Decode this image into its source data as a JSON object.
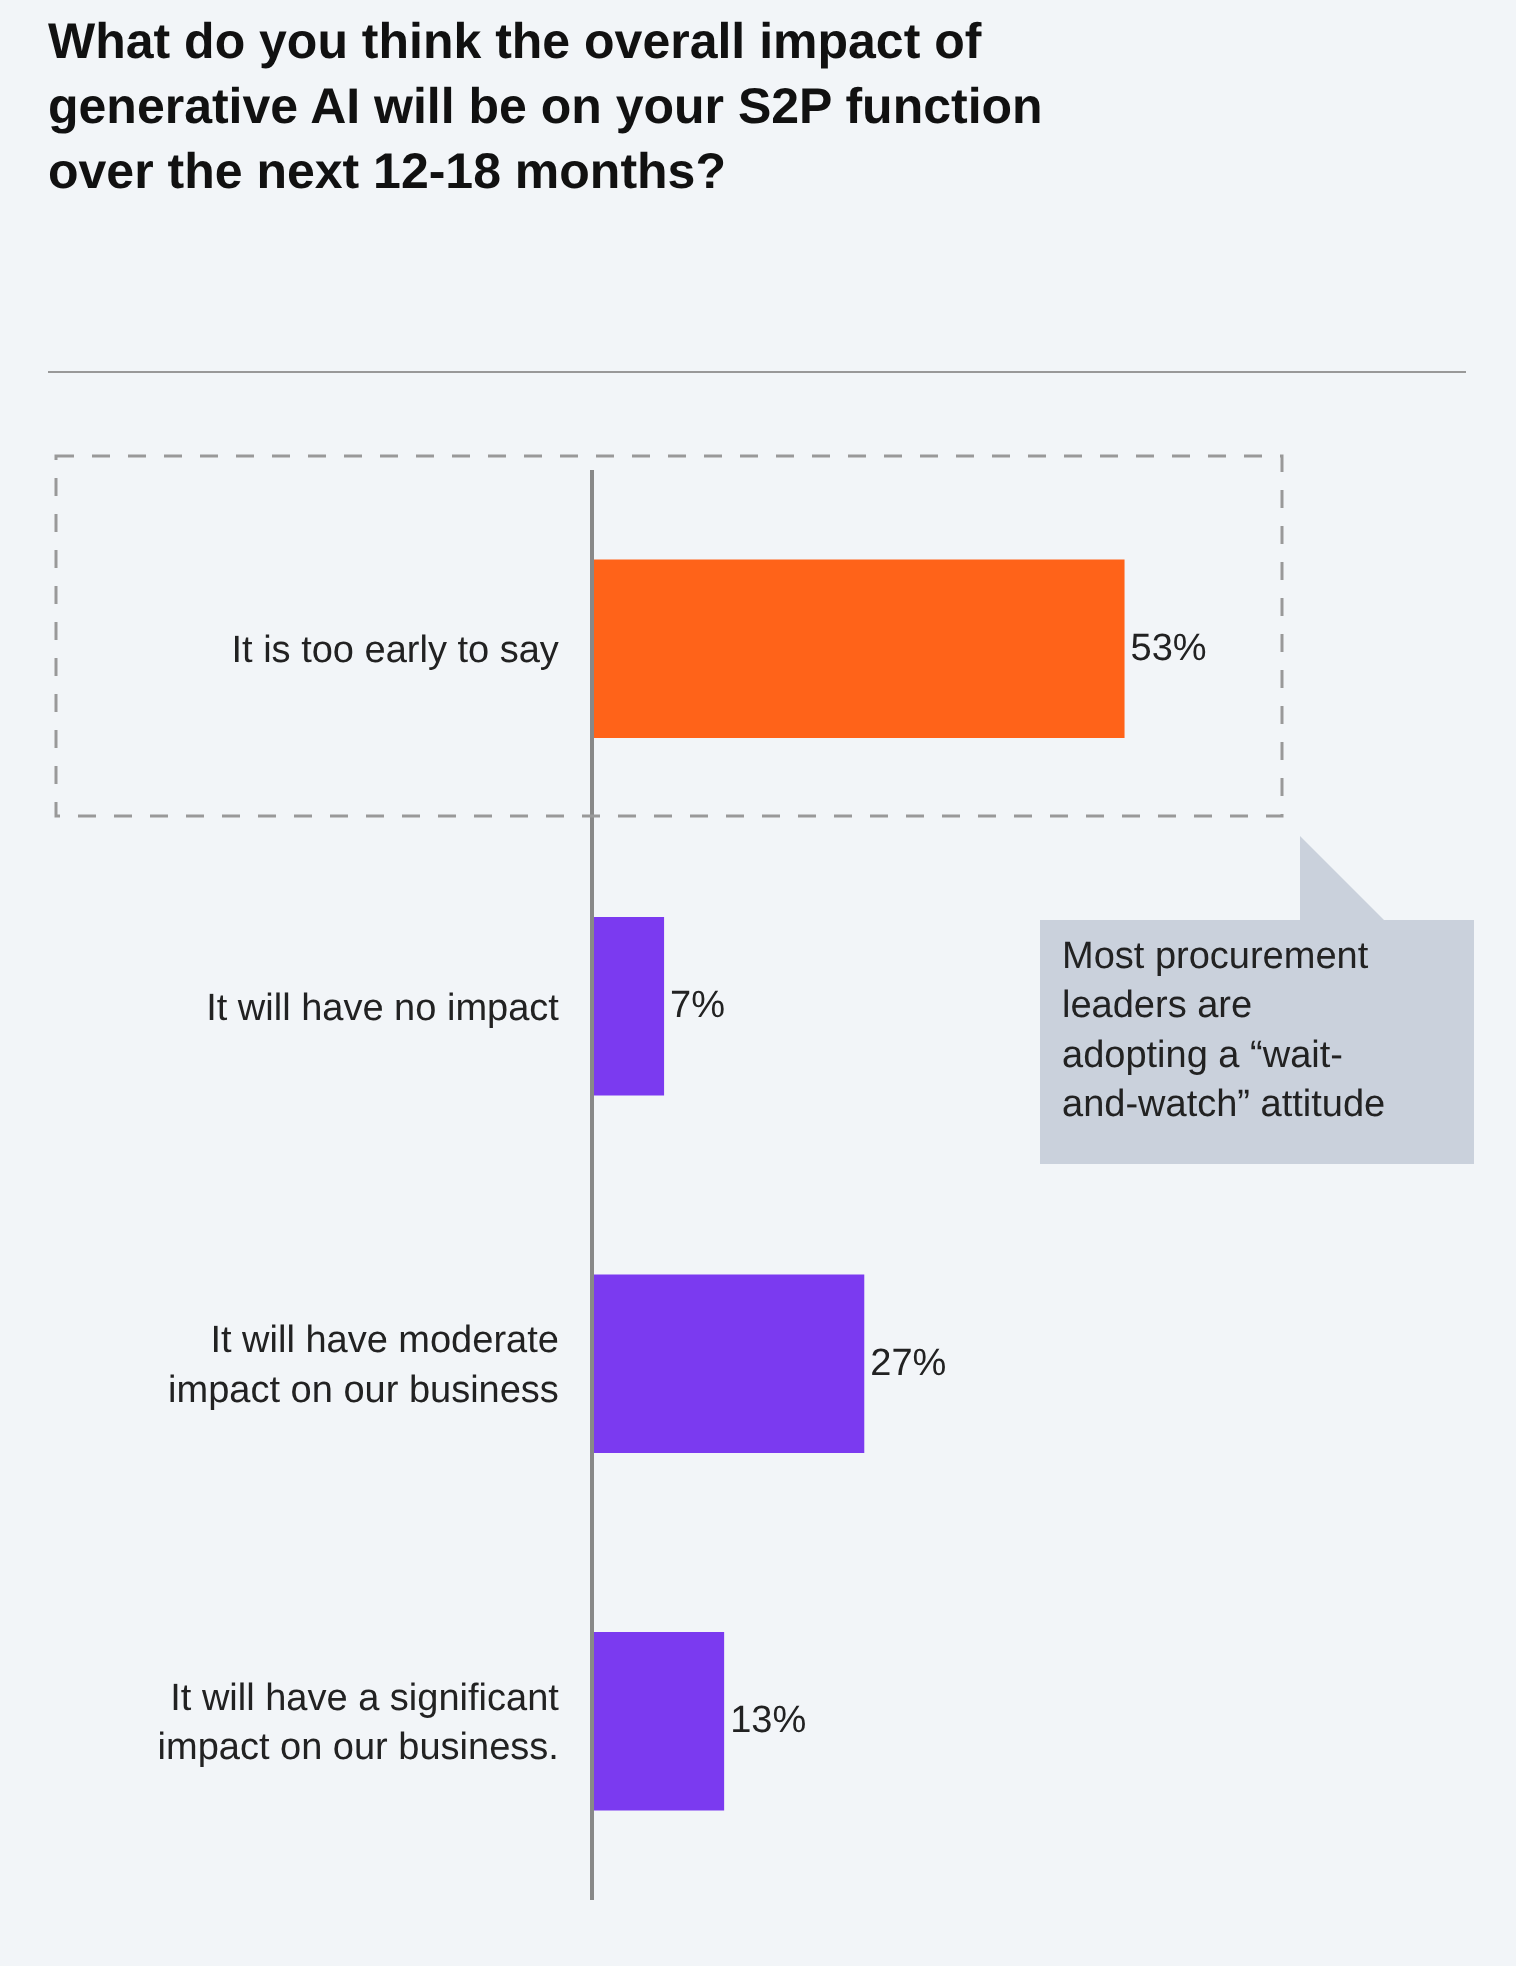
{
  "chart_data": {
    "type": "bar",
    "orientation": "horizontal",
    "title": "What do you think the overall impact of generative AI will be on your S2P function over the next 12-18 months?",
    "categories": [
      "It is too early to say",
      "It will have no impact",
      "It will have moderate impact on our business",
      "It will have a significant impact on our business."
    ],
    "values": [
      53,
      7,
      27,
      13
    ],
    "colors": [
      "#ff6319",
      "#7b3af0",
      "#7b3af0",
      "#7b3af0"
    ],
    "value_labels": [
      "53%",
      "7%",
      "27%",
      "13%"
    ],
    "annotations": [
      "Most procurement leaders are adopting a “wait-and-watch” attitude"
    ],
    "grid": false,
    "legend": false
  }
}
